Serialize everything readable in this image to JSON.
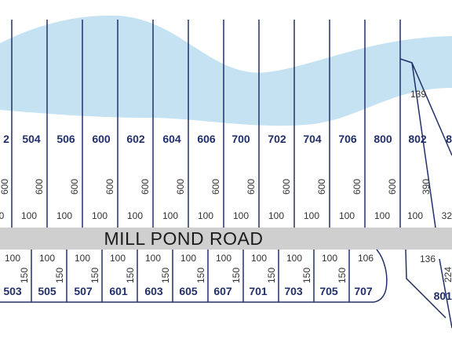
{
  "colors": {
    "water": "#c5e2f3",
    "road": "#cfcfcf",
    "lot_line": "#22306a",
    "lot_number": "#22306a",
    "dimension": "#333333"
  },
  "road": {
    "name": "MILL POND ROAD"
  },
  "north_lots": [
    {
      "number": "2",
      "depth": "600",
      "frontage": "0"
    },
    {
      "number": "504",
      "depth": "600",
      "frontage": "100"
    },
    {
      "number": "506",
      "depth": "600",
      "frontage": "100"
    },
    {
      "number": "600",
      "depth": "600",
      "frontage": "100"
    },
    {
      "number": "602",
      "depth": "600",
      "frontage": "100"
    },
    {
      "number": "604",
      "depth": "600",
      "frontage": "100"
    },
    {
      "number": "606",
      "depth": "600",
      "frontage": "100"
    },
    {
      "number": "700",
      "depth": "600",
      "frontage": "100"
    },
    {
      "number": "702",
      "depth": "600",
      "frontage": "100"
    },
    {
      "number": "704",
      "depth": "600",
      "frontage": "100"
    },
    {
      "number": "706",
      "depth": "600",
      "frontage": "100"
    },
    {
      "number": "800",
      "depth": "600",
      "frontage": "100"
    },
    {
      "number": "802",
      "depth": "390",
      "frontage": "100",
      "rear": "139"
    },
    {
      "number": "8",
      "frontage": "32"
    }
  ],
  "south_lots": [
    {
      "number": "503",
      "frontage": "100",
      "depth": "150"
    },
    {
      "number": "505",
      "frontage": "100",
      "depth": "150"
    },
    {
      "number": "507",
      "frontage": "100",
      "depth": "150"
    },
    {
      "number": "601",
      "frontage": "100",
      "depth": "150"
    },
    {
      "number": "603",
      "frontage": "100",
      "depth": "150"
    },
    {
      "number": "605",
      "frontage": "100",
      "depth": "150"
    },
    {
      "number": "607",
      "frontage": "100",
      "depth": "150"
    },
    {
      "number": "701",
      "frontage": "100",
      "depth": "150"
    },
    {
      "number": "703",
      "frontage": "100",
      "depth": "150"
    },
    {
      "number": "705",
      "frontage": "100",
      "depth": "150"
    },
    {
      "number": "707",
      "frontage": "106"
    },
    {
      "number": "801",
      "frontage": "136",
      "depth": "224"
    }
  ]
}
